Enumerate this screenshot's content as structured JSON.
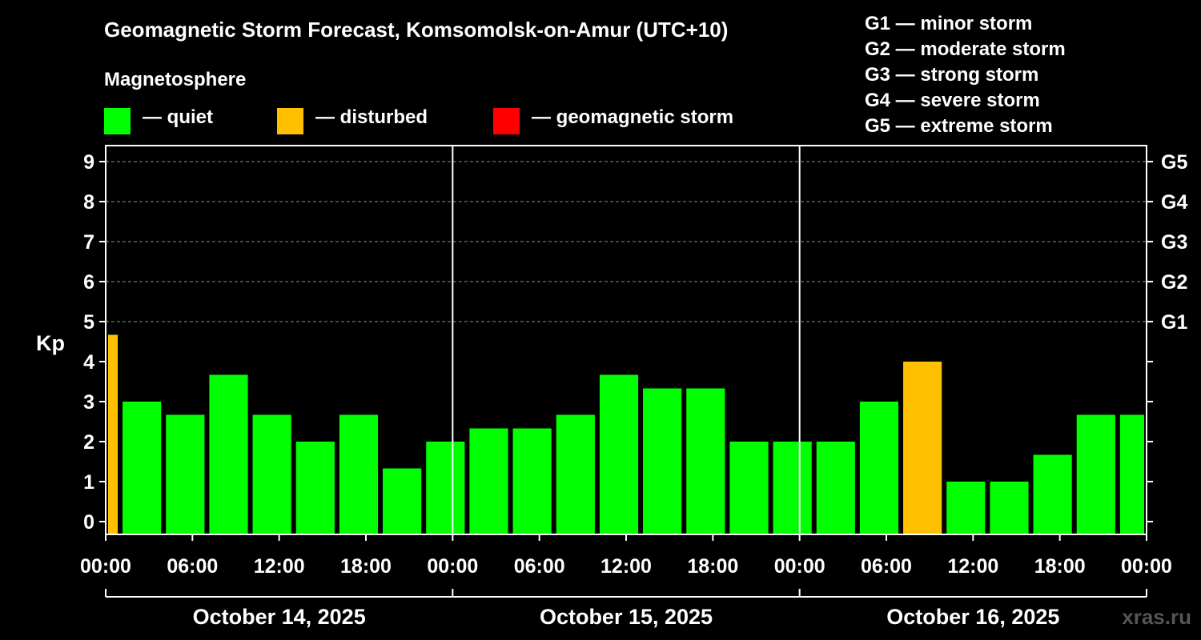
{
  "chart_data": {
    "type": "bar",
    "title": "Geomagnetic Storm Forecast, Komsomolsk-on-Amur (UTC+10)",
    "subtitle": "Magnetosphere",
    "ylabel": "Kp",
    "ylim": [
      0,
      9
    ],
    "yticks": [
      "0",
      "1",
      "2",
      "3",
      "4",
      "5",
      "6",
      "7",
      "8",
      "9"
    ],
    "right_ticks": [
      {
        "value": 5,
        "label": "G1"
      },
      {
        "value": 6,
        "label": "G2"
      },
      {
        "value": 7,
        "label": "G3"
      },
      {
        "value": 8,
        "label": "G4"
      },
      {
        "value": 9,
        "label": "G5"
      }
    ],
    "xticks": [
      "00:00",
      "06:00",
      "12:00",
      "18:00",
      "00:00",
      "06:00",
      "12:00",
      "18:00",
      "00:00",
      "06:00",
      "12:00",
      "18:00",
      "00:00"
    ],
    "days": [
      "October 14, 2025",
      "October 15, 2025",
      "October 16, 2025"
    ],
    "bar_interval_hours": 3,
    "bars": [
      {
        "start_hour": 0,
        "end_hour": 1,
        "value": 4.67,
        "status": "disturbed"
      },
      {
        "start_hour": 1,
        "end_hour": 4,
        "value": 3.0,
        "status": "quiet"
      },
      {
        "start_hour": 4,
        "end_hour": 7,
        "value": 2.67,
        "status": "quiet"
      },
      {
        "start_hour": 7,
        "end_hour": 10,
        "value": 3.67,
        "status": "quiet"
      },
      {
        "start_hour": 10,
        "end_hour": 13,
        "value": 2.67,
        "status": "quiet"
      },
      {
        "start_hour": 13,
        "end_hour": 16,
        "value": 2.0,
        "status": "quiet"
      },
      {
        "start_hour": 16,
        "end_hour": 19,
        "value": 2.67,
        "status": "quiet"
      },
      {
        "start_hour": 19,
        "end_hour": 22,
        "value": 1.33,
        "status": "quiet"
      },
      {
        "start_hour": 22,
        "end_hour": 25,
        "value": 2.0,
        "status": "quiet"
      },
      {
        "start_hour": 25,
        "end_hour": 28,
        "value": 2.33,
        "status": "quiet"
      },
      {
        "start_hour": 28,
        "end_hour": 31,
        "value": 2.33,
        "status": "quiet"
      },
      {
        "start_hour": 31,
        "end_hour": 34,
        "value": 2.67,
        "status": "quiet"
      },
      {
        "start_hour": 34,
        "end_hour": 37,
        "value": 3.67,
        "status": "quiet"
      },
      {
        "start_hour": 37,
        "end_hour": 40,
        "value": 3.33,
        "status": "quiet"
      },
      {
        "start_hour": 40,
        "end_hour": 43,
        "value": 3.33,
        "status": "quiet"
      },
      {
        "start_hour": 43,
        "end_hour": 46,
        "value": 2.0,
        "status": "quiet"
      },
      {
        "start_hour": 46,
        "end_hour": 49,
        "value": 2.0,
        "status": "quiet"
      },
      {
        "start_hour": 49,
        "end_hour": 52,
        "value": 2.0,
        "status": "quiet"
      },
      {
        "start_hour": 52,
        "end_hour": 55,
        "value": 3.0,
        "status": "quiet"
      },
      {
        "start_hour": 55,
        "end_hour": 58,
        "value": 4.0,
        "status": "disturbed"
      },
      {
        "start_hour": 58,
        "end_hour": 61,
        "value": 1.0,
        "status": "quiet"
      },
      {
        "start_hour": 61,
        "end_hour": 64,
        "value": 1.0,
        "status": "quiet"
      },
      {
        "start_hour": 64,
        "end_hour": 67,
        "value": 1.67,
        "status": "quiet"
      },
      {
        "start_hour": 67,
        "end_hour": 70,
        "value": 2.67,
        "status": "quiet"
      },
      {
        "start_hour": 70,
        "end_hour": 72,
        "value": 2.67,
        "status": "quiet"
      }
    ],
    "xlim_hours": [
      0,
      72
    ],
    "grid": true
  },
  "legend": {
    "items": [
      {
        "label": "— quiet",
        "color": "#00ff00"
      },
      {
        "label": "— disturbed",
        "color": "#ffc000"
      },
      {
        "label": "— geomagnetic storm",
        "color": "#ff0000"
      }
    ],
    "g_scale": [
      "G1 — minor storm",
      "G2 — moderate storm",
      "G3 — strong storm",
      "G4 — severe storm",
      "G5 — extreme storm"
    ]
  },
  "colors": {
    "quiet": "#00ff00",
    "disturbed": "#ffc000",
    "storm": "#ff0000"
  },
  "watermark": "xras.ru"
}
